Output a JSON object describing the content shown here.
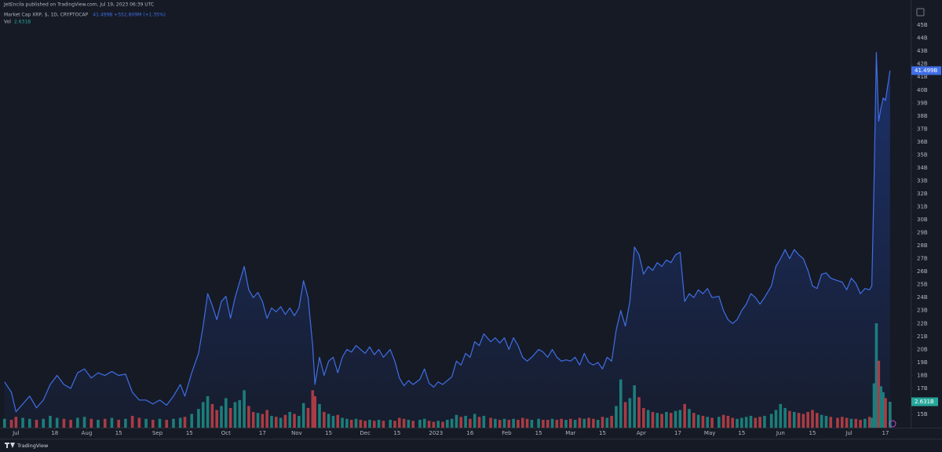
{
  "chart_data": {
    "type": "line",
    "title": "JetEncila published on TradingView.com, Jul 19, 2023 06:39 UTC",
    "header_value": "41.499B +552.809M (+1.35%)",
    "last_value_label": "41.499B",
    "volume_label": "2.631B",
    "footer": "TradingView",
    "xlim": [
      -7,
      392
    ],
    "xticks": [
      {
        "value": 0,
        "label": "Jul"
      },
      {
        "value": 17,
        "label": "18"
      },
      {
        "value": 31,
        "label": "Aug"
      },
      {
        "value": 45,
        "label": "15"
      },
      {
        "value": 62,
        "label": "Sep"
      },
      {
        "value": 76,
        "label": "15"
      },
      {
        "value": 92,
        "label": "Oct"
      },
      {
        "value": 108,
        "label": "17"
      },
      {
        "value": 123,
        "label": "Nov"
      },
      {
        "value": 137,
        "label": "15"
      },
      {
        "value": 153,
        "label": "Dec"
      },
      {
        "value": 167,
        "label": "15"
      },
      {
        "value": 184,
        "label": "2023"
      },
      {
        "value": 199,
        "label": "16"
      },
      {
        "value": 215,
        "label": "Feb"
      },
      {
        "value": 229,
        "label": "15"
      },
      {
        "value": 243,
        "label": "Mar"
      },
      {
        "value": 257,
        "label": "15"
      },
      {
        "value": 274,
        "label": "Apr"
      },
      {
        "value": 290,
        "label": "17"
      },
      {
        "value": 304,
        "label": "May"
      },
      {
        "value": 318,
        "label": "15"
      },
      {
        "value": 335,
        "label": "Jun"
      },
      {
        "value": 349,
        "label": "15"
      },
      {
        "value": 365,
        "label": "Jul"
      },
      {
        "value": 381,
        "label": "17"
      }
    ],
    "ylim": [
      14,
      46
    ],
    "yticks": [
      {
        "value": 15,
        "label": "15B"
      },
      {
        "value": 16,
        "label": "16B"
      },
      {
        "value": 17,
        "label": "17B"
      },
      {
        "value": 18,
        "label": "18B"
      },
      {
        "value": 19,
        "label": "19B"
      },
      {
        "value": 20,
        "label": "20B"
      },
      {
        "value": 21,
        "label": "21B"
      },
      {
        "value": 22,
        "label": "22B"
      },
      {
        "value": 23,
        "label": "23B"
      },
      {
        "value": 24,
        "label": "24B"
      },
      {
        "value": 25,
        "label": "25B"
      },
      {
        "value": 26,
        "label": "26B"
      },
      {
        "value": 27,
        "label": "27B"
      },
      {
        "value": 28,
        "label": "28B"
      },
      {
        "value": 29,
        "label": "29B"
      },
      {
        "value": 30,
        "label": "30B"
      },
      {
        "value": 31,
        "label": "31B"
      },
      {
        "value": 32,
        "label": "32B"
      },
      {
        "value": 33,
        "label": "33B"
      },
      {
        "value": 34,
        "label": "34B"
      },
      {
        "value": 35,
        "label": "35B"
      },
      {
        "value": 36,
        "label": "36B"
      },
      {
        "value": 37,
        "label": "37B"
      },
      {
        "value": 38,
        "label": "38B"
      },
      {
        "value": 39,
        "label": "39B"
      },
      {
        "value": 40,
        "label": "40B"
      },
      {
        "value": 41,
        "label": "41B"
      },
      {
        "value": 42,
        "label": "42B"
      },
      {
        "value": 43,
        "label": "43B"
      },
      {
        "value": 44,
        "label": "44B"
      },
      {
        "value": 45,
        "label": "45B"
      }
    ],
    "grid": false,
    "x": [
      -5,
      -2,
      0,
      3,
      6,
      9,
      12,
      15,
      18,
      21,
      24,
      27,
      30,
      33,
      36,
      39,
      42,
      45,
      48,
      51,
      54,
      57,
      60,
      63,
      66,
      69,
      72,
      74,
      77,
      80,
      82,
      84,
      86,
      88,
      90,
      92,
      94,
      96,
      98,
      100,
      102,
      104,
      106,
      108,
      110,
      112,
      114,
      116,
      118,
      120,
      122,
      124,
      126,
      128,
      130,
      131,
      133,
      135,
      137,
      139,
      141,
      143,
      145,
      147,
      149,
      151,
      153,
      155,
      157,
      159,
      161,
      164,
      166,
      168,
      170,
      172,
      174,
      177,
      179,
      181,
      183,
      185,
      187,
      189,
      191,
      193,
      195,
      197,
      199,
      201,
      203,
      205,
      208,
      210,
      212,
      214,
      216,
      218,
      220,
      222,
      224,
      226,
      229,
      231,
      233,
      235,
      237,
      239,
      241,
      243,
      245,
      247,
      249,
      251,
      253,
      255,
      257,
      259,
      261,
      263,
      265,
      267,
      269,
      271,
      273,
      275,
      277,
      279,
      281,
      283,
      285,
      287,
      289,
      291,
      293,
      295,
      297,
      299,
      301,
      303,
      305,
      308,
      310,
      312,
      314,
      316,
      318,
      320,
      322,
      324,
      326,
      328,
      331,
      333,
      335,
      337,
      339,
      341,
      343,
      345,
      347,
      349,
      351,
      353,
      355,
      357,
      360,
      362,
      364,
      366,
      368,
      370,
      372,
      374,
      375,
      376,
      377,
      378,
      379,
      380,
      381,
      383
    ],
    "series": [
      {
        "name": "Market Cap XRP, $, 1D, CRYPTOCAP",
        "color": "#3f6ee6",
        "values": [
          17.5,
          16.7,
          15.2,
          15.8,
          16.4,
          15.5,
          16.1,
          17.3,
          18.0,
          17.3,
          17.0,
          18.2,
          18.5,
          17.8,
          18.2,
          18.0,
          18.3,
          18.0,
          18.1,
          16.7,
          16.1,
          16.1,
          15.8,
          16.1,
          15.7,
          16.4,
          17.3,
          16.4,
          18.2,
          19.7,
          21.8,
          24.3,
          23.4,
          22.3,
          23.7,
          24.1,
          22.4,
          24.0,
          25.2,
          26.4,
          24.6,
          24.0,
          24.4,
          23.7,
          22.4,
          23.2,
          22.9,
          23.3,
          22.7,
          23.2,
          22.6,
          23.2,
          25.3,
          24.0,
          20.3,
          17.3,
          19.4,
          18.0,
          19.1,
          19.4,
          18.2,
          19.4,
          20.0,
          19.8,
          20.3,
          20.0,
          19.7,
          20.2,
          19.6,
          20.0,
          19.4,
          20.0,
          19.1,
          17.8,
          17.2,
          17.6,
          17.3,
          17.7,
          18.5,
          17.4,
          17.1,
          17.5,
          17.3,
          17.6,
          17.9,
          19.1,
          18.8,
          19.7,
          19.4,
          20.6,
          20.3,
          21.2,
          20.6,
          20.9,
          20.5,
          20.9,
          20.0,
          20.9,
          20.3,
          19.4,
          19.1,
          19.4,
          20.0,
          19.8,
          19.4,
          20.0,
          19.4,
          19.1,
          19.2,
          19.1,
          19.4,
          18.8,
          19.7,
          19.0,
          18.8,
          19.0,
          18.5,
          19.4,
          19.1,
          21.5,
          23.0,
          21.8,
          23.7,
          27.9,
          27.3,
          25.8,
          26.4,
          26.1,
          26.7,
          26.4,
          26.9,
          26.7,
          27.3,
          27.5,
          23.7,
          24.3,
          24.0,
          24.6,
          24.3,
          24.7,
          24.0,
          24.1,
          23.0,
          22.3,
          22.0,
          22.3,
          23.0,
          23.5,
          24.3,
          24.0,
          23.5,
          24.0,
          24.9,
          26.4,
          27.0,
          27.7,
          27.0,
          27.7,
          27.3,
          27.0,
          26.1,
          24.9,
          24.7,
          25.8,
          25.9,
          25.5,
          25.3,
          25.2,
          24.6,
          25.5,
          25.1,
          24.3,
          24.7,
          24.6,
          24.9,
          33.0,
          42.9,
          37.6,
          38.6,
          39.4,
          39.2,
          41.499
        ]
      },
      {
        "name": "Vol",
        "up_color": "#1b7f73",
        "down_color": "#b03a3a",
        "label_color": "#26a69a",
        "values": [
          0.9,
          0.8,
          1.1,
          1.0,
          0.9,
          0.8,
          0.9,
          1.2,
          1.0,
          0.9,
          0.8,
          1.0,
          1.1,
          0.9,
          0.8,
          0.9,
          1.0,
          0.8,
          0.9,
          1.2,
          1.0,
          0.9,
          0.8,
          0.9,
          0.8,
          0.9,
          1.0,
          1.1,
          1.4,
          1.9,
          2.6,
          3.2,
          2.4,
          1.8,
          2.2,
          3.0,
          2.0,
          2.6,
          2.8,
          3.8,
          2.2,
          1.6,
          1.5,
          1.4,
          1.8,
          1.2,
          1.1,
          1.0,
          1.3,
          1.6,
          1.4,
          1.2,
          2.5,
          2.0,
          3.8,
          3.2,
          2.4,
          1.6,
          1.4,
          1.2,
          1.3,
          1.0,
          0.9,
          0.8,
          0.9,
          0.8,
          0.7,
          0.8,
          0.7,
          0.8,
          0.7,
          0.8,
          0.7,
          1.0,
          0.9,
          0.8,
          0.7,
          0.8,
          0.9,
          0.7,
          0.6,
          0.7,
          0.6,
          0.8,
          0.9,
          1.3,
          1.1,
          1.2,
          0.9,
          1.4,
          1.1,
          1.2,
          1.0,
          0.9,
          0.8,
          0.9,
          0.8,
          0.9,
          0.8,
          1.0,
          0.9,
          0.8,
          0.9,
          0.8,
          0.8,
          0.9,
          0.8,
          0.9,
          0.8,
          0.9,
          0.8,
          1.0,
          0.9,
          1.0,
          0.9,
          0.8,
          1.1,
          1.0,
          1.2,
          2.2,
          4.9,
          2.6,
          3.0,
          4.3,
          3.1,
          2.0,
          1.8,
          1.6,
          1.5,
          1.4,
          1.6,
          1.5,
          1.7,
          1.8,
          2.4,
          1.9,
          1.5,
          1.3,
          1.2,
          1.1,
          1.0,
          1.1,
          1.3,
          1.2,
          1.0,
          0.9,
          1.0,
          1.1,
          1.2,
          1.0,
          1.1,
          1.2,
          1.4,
          1.8,
          2.4,
          2.0,
          1.7,
          1.6,
          1.5,
          1.4,
          1.6,
          1.8,
          1.5,
          1.3,
          1.2,
          1.1,
          1.0,
          1.1,
          1.0,
          0.9,
          0.9,
          0.8,
          0.9,
          1.1,
          1.0,
          4.5,
          10.6,
          6.8,
          4.2,
          3.6,
          3.0,
          2.631
        ]
      }
    ]
  }
}
